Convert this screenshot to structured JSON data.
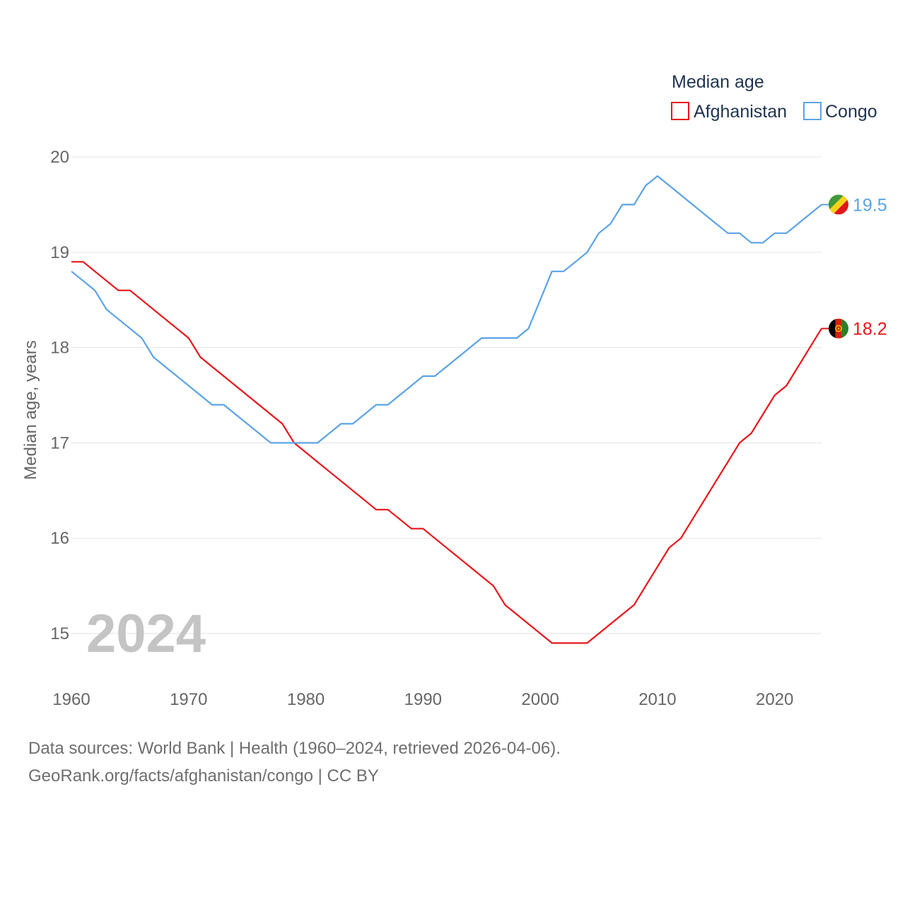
{
  "chart_data": {
    "type": "line",
    "legend_title": "Median age",
    "ylabel": "Median age, years",
    "xlabel": "",
    "current_year_label": "2024",
    "x": [
      1960,
      1961,
      1962,
      1963,
      1964,
      1965,
      1966,
      1967,
      1968,
      1969,
      1970,
      1971,
      1972,
      1973,
      1974,
      1975,
      1976,
      1977,
      1978,
      1979,
      1980,
      1981,
      1982,
      1983,
      1984,
      1985,
      1986,
      1987,
      1988,
      1989,
      1990,
      1991,
      1992,
      1993,
      1994,
      1995,
      1996,
      1997,
      1998,
      1999,
      2000,
      2001,
      2002,
      2003,
      2004,
      2005,
      2006,
      2007,
      2008,
      2009,
      2010,
      2011,
      2012,
      2013,
      2014,
      2015,
      2016,
      2017,
      2018,
      2019,
      2020,
      2021,
      2022,
      2023,
      2024
    ],
    "xlim": [
      1960,
      2024
    ],
    "ylim": [
      14.5,
      20
    ],
    "x_ticks": [
      1960,
      1970,
      1980,
      1990,
      2000,
      2010,
      2020
    ],
    "y_ticks": [
      15,
      16,
      17,
      18,
      19,
      20
    ],
    "series": [
      {
        "name": "Afghanistan",
        "color": "#e8151b",
        "end_label": "18.2",
        "flag": "afghanistan-flag",
        "values": [
          18.9,
          18.9,
          18.8,
          18.7,
          18.6,
          18.6,
          18.5,
          18.4,
          18.3,
          18.2,
          18.1,
          17.9,
          17.8,
          17.7,
          17.6,
          17.5,
          17.4,
          17.3,
          17.2,
          17.0,
          16.9,
          16.8,
          16.7,
          16.6,
          16.5,
          16.4,
          16.3,
          16.3,
          16.2,
          16.1,
          16.1,
          16.0,
          15.9,
          15.8,
          15.7,
          15.6,
          15.5,
          15.3,
          15.2,
          15.1,
          15.0,
          14.9,
          14.9,
          14.9,
          14.9,
          15.0,
          15.1,
          15.2,
          15.3,
          15.5,
          15.7,
          15.9,
          16.0,
          16.2,
          16.4,
          16.6,
          16.8,
          17.0,
          17.1,
          17.3,
          17.5,
          17.6,
          17.8,
          18.0,
          18.2
        ]
      },
      {
        "name": "Congo",
        "color": "#5ba3e6",
        "end_label": "19.5",
        "flag": "congo-flag",
        "values": [
          18.8,
          18.7,
          18.6,
          18.4,
          18.3,
          18.2,
          18.1,
          17.9,
          17.8,
          17.7,
          17.6,
          17.5,
          17.4,
          17.4,
          17.3,
          17.2,
          17.1,
          17.0,
          17.0,
          17.0,
          17.0,
          17.0,
          17.1,
          17.2,
          17.2,
          17.3,
          17.4,
          17.4,
          17.5,
          17.6,
          17.7,
          17.7,
          17.8,
          17.9,
          18.0,
          18.1,
          18.1,
          18.1,
          18.1,
          18.2,
          18.5,
          18.8,
          18.8,
          18.9,
          19.0,
          19.2,
          19.3,
          19.5,
          19.5,
          19.7,
          19.8,
          19.7,
          19.6,
          19.5,
          19.4,
          19.3,
          19.2,
          19.2,
          19.1,
          19.1,
          19.2,
          19.2,
          19.3,
          19.4,
          19.5
        ]
      }
    ]
  },
  "source": {
    "line1": "Data sources: World Bank | Health (1960–2024, retrieved 2026-04-06).",
    "line2": "GeoRank.org/facts/afghanistan/congo | CC BY"
  }
}
